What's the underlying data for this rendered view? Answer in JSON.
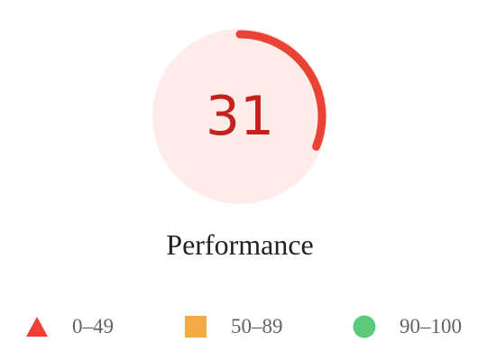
{
  "gauge": {
    "score": "31",
    "score_fraction": 0.31,
    "rating": "fail",
    "arc_color": "#ea4335",
    "fill_color": "#fdecea",
    "text_color": "#c5221f"
  },
  "category": {
    "title": "Performance"
  },
  "legend": [
    {
      "range": "0–49",
      "icon": "red-triangle-icon",
      "color": "#ea4335"
    },
    {
      "range": "50–89",
      "icon": "orange-square-icon",
      "color": "#f4a847"
    },
    {
      "range": "90–100",
      "icon": "green-circle-icon",
      "color": "#5cc87a"
    }
  ]
}
